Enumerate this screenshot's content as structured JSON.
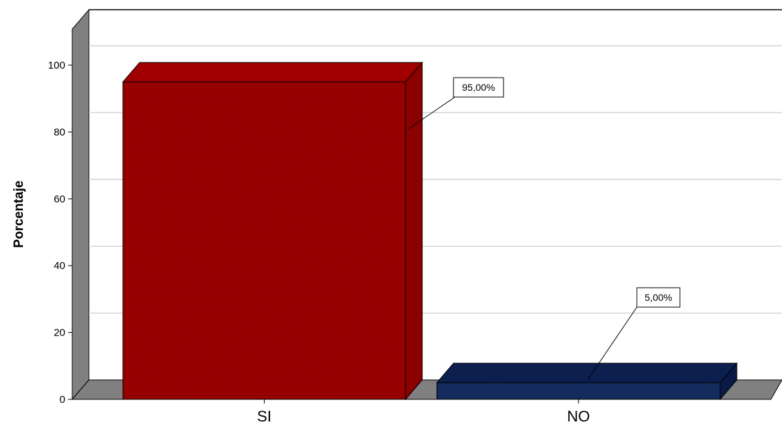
{
  "chart_data": {
    "type": "bar",
    "categories": [
      "SI",
      "NO"
    ],
    "values": [
      95,
      5
    ],
    "data_labels": [
      "95,00%",
      "5,00%"
    ],
    "ylabel": "Porcentaje",
    "xlabel": "",
    "ylim": [
      0,
      100
    ],
    "yticks": [
      0,
      20,
      40,
      60,
      80,
      100
    ],
    "ytick_labels": [
      "0",
      "20",
      "40",
      "60",
      "80",
      "100"
    ],
    "grid": true,
    "three_d": true,
    "pattern": "crosshatch",
    "colors": {
      "SI": {
        "front": "#c00000",
        "top": "#a00000",
        "side": "#8b0000"
      },
      "NO": {
        "front": "#1a3a7a",
        "top": "#0d1f4f",
        "side": "#0b1a45"
      },
      "floor": "#808080",
      "wall_side": "#808080",
      "grid": "#d4d4d4"
    }
  }
}
